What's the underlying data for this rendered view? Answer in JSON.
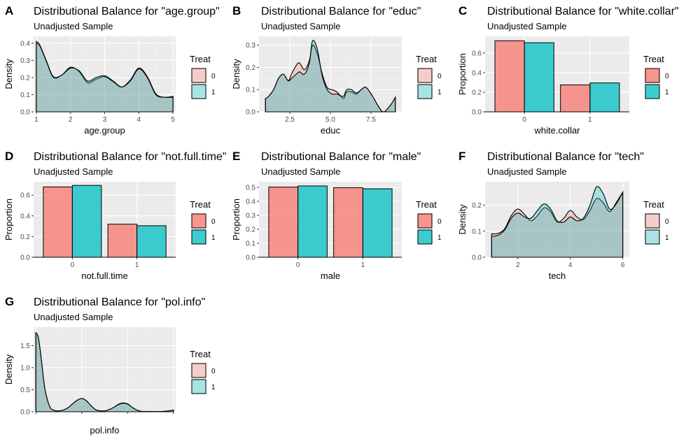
{
  "colors": {
    "treat0_bar": "#F8766D",
    "treat1_bar": "#00BFC4",
    "panel_bg": "#EBEBEB",
    "grid_major": "#FFFFFF",
    "text_dark": "#000000",
    "axis_text": "#4D4D4D"
  },
  "legend": {
    "title": "Treat",
    "labels": [
      "0",
      "1"
    ]
  },
  "chart_data": [
    {
      "tag": "A",
      "type": "area",
      "title": "Distributional Balance for \"age.group\"",
      "subtitle": "Unadjusted Sample",
      "xlabel": "age.group",
      "ylabel": "Density",
      "xlim": [
        0.92,
        5.08
      ],
      "ylim": [
        0,
        0.44
      ],
      "xticks": [
        1,
        2,
        3,
        4,
        5
      ],
      "yticks": [
        0.0,
        0.1,
        0.2,
        0.3,
        0.4
      ],
      "ytick_labels": [
        "0.0",
        "0.1",
        "0.2",
        "0.3",
        "0.4"
      ],
      "series": [
        {
          "name": "0",
          "x": [
            1.0,
            1.1,
            1.3,
            1.5,
            1.75,
            2.0,
            2.25,
            2.5,
            2.75,
            3.0,
            3.25,
            3.5,
            3.75,
            4.0,
            4.25,
            4.5,
            4.75,
            5.0
          ],
          "y": [
            0.4,
            0.385,
            0.29,
            0.2,
            0.215,
            0.26,
            0.235,
            0.17,
            0.19,
            0.205,
            0.175,
            0.145,
            0.185,
            0.255,
            0.205,
            0.105,
            0.085,
            0.09
          ]
        },
        {
          "name": "1",
          "x": [
            1.0,
            1.1,
            1.3,
            1.5,
            1.75,
            2.0,
            2.25,
            2.5,
            2.75,
            3.0,
            3.25,
            3.5,
            3.75,
            4.0,
            4.25,
            4.5,
            4.75,
            5.0
          ],
          "y": [
            0.41,
            0.39,
            0.295,
            0.205,
            0.215,
            0.255,
            0.24,
            0.18,
            0.2,
            0.21,
            0.18,
            0.145,
            0.18,
            0.25,
            0.2,
            0.1,
            0.085,
            0.085
          ]
        }
      ]
    },
    {
      "tag": "B",
      "type": "area",
      "title": "Distributional Balance for \"educ\"",
      "subtitle": "Unadjusted Sample",
      "xlabel": "educ",
      "ylabel": "Density",
      "xlim": [
        0.6,
        9.4
      ],
      "ylim": [
        0,
        0.34
      ],
      "xticks": [
        2.5,
        5.0,
        7.5
      ],
      "xtick_labels": [
        "2.5",
        "5.0",
        "7.5"
      ],
      "yticks": [
        0.0,
        0.1,
        0.2,
        0.3
      ],
      "ytick_labels": [
        "0.0",
        "0.1",
        "0.2",
        "0.3"
      ],
      "series": [
        {
          "name": "0",
          "x": [
            1.0,
            1.2,
            1.5,
            1.8,
            2.1,
            2.4,
            2.6,
            2.9,
            3.1,
            3.4,
            3.7,
            3.9,
            4.2,
            4.5,
            4.8,
            5.1,
            5.4,
            5.8,
            6.0,
            6.3,
            6.6,
            6.9,
            7.2,
            7.6,
            8.0,
            8.3,
            8.7,
            9.0
          ],
          "y": [
            0.06,
            0.07,
            0.1,
            0.15,
            0.17,
            0.14,
            0.17,
            0.21,
            0.22,
            0.19,
            0.23,
            0.3,
            0.26,
            0.17,
            0.11,
            0.1,
            0.09,
            0.06,
            0.09,
            0.09,
            0.08,
            0.1,
            0.11,
            0.07,
            0.02,
            0.0,
            0.03,
            0.065
          ]
        },
        {
          "name": "1",
          "x": [
            1.0,
            1.2,
            1.5,
            1.8,
            2.1,
            2.4,
            2.6,
            2.9,
            3.1,
            3.4,
            3.7,
            3.9,
            4.2,
            4.5,
            4.8,
            5.1,
            5.4,
            5.8,
            6.0,
            6.3,
            6.6,
            6.9,
            7.2,
            7.6,
            8.0,
            8.3,
            8.7,
            9.0
          ],
          "y": [
            0.06,
            0.07,
            0.1,
            0.15,
            0.17,
            0.14,
            0.15,
            0.17,
            0.18,
            0.17,
            0.22,
            0.32,
            0.28,
            0.16,
            0.1,
            0.08,
            0.08,
            0.07,
            0.1,
            0.1,
            0.085,
            0.1,
            0.11,
            0.07,
            0.02,
            0.0,
            0.03,
            0.065
          ]
        }
      ]
    },
    {
      "tag": "C",
      "type": "bar",
      "title": "Distributional Balance for \"white.collar\"",
      "subtitle": "Unadjusted Sample",
      "xlabel": "white.collar",
      "ylabel": "Proportion",
      "categories": [
        "0",
        "1"
      ],
      "ylim": [
        0,
        0.77
      ],
      "yticks": [
        0.0,
        0.2,
        0.4,
        0.6
      ],
      "ytick_labels": [
        "0.0",
        "0.2",
        "0.4",
        "0.6"
      ],
      "series": [
        {
          "name": "0",
          "values": [
            0.725,
            0.275
          ]
        },
        {
          "name": "1",
          "values": [
            0.705,
            0.295
          ]
        }
      ]
    },
    {
      "tag": "D",
      "type": "bar",
      "title": "Distributional Balance for \"not.full.time\"",
      "subtitle": "Unadjusted Sample",
      "xlabel": "not.full.time",
      "ylabel": "Proportion",
      "categories": [
        "0",
        "1"
      ],
      "ylim": [
        0,
        0.73
      ],
      "yticks": [
        0.0,
        0.2,
        0.4,
        0.6
      ],
      "ytick_labels": [
        "0.0",
        "0.2",
        "0.4",
        "0.6"
      ],
      "series": [
        {
          "name": "0",
          "values": [
            0.68,
            0.32
          ]
        },
        {
          "name": "1",
          "values": [
            0.695,
            0.305
          ]
        }
      ]
    },
    {
      "tag": "E",
      "type": "bar",
      "title": "Distributional Balance for \"male\"",
      "subtitle": "Unadjusted Sample",
      "xlabel": "male",
      "ylabel": "Proportion",
      "categories": [
        "0",
        "1"
      ],
      "ylim": [
        0,
        0.54
      ],
      "yticks": [
        0.0,
        0.1,
        0.2,
        0.3,
        0.4,
        0.5
      ],
      "ytick_labels": [
        "0.0",
        "0.1",
        "0.2",
        "0.3",
        "0.4",
        "0.5"
      ],
      "series": [
        {
          "name": "0",
          "values": [
            0.502,
            0.498
          ]
        },
        {
          "name": "1",
          "values": [
            0.51,
            0.49
          ]
        }
      ]
    },
    {
      "tag": "F",
      "type": "area",
      "title": "Distributional Balance for \"tech\"",
      "subtitle": "Unadjusted Sample",
      "xlabel": "tech",
      "ylabel": "Density",
      "xlim": [
        0.75,
        6.25
      ],
      "ylim": [
        0,
        0.29
      ],
      "xticks": [
        2,
        4,
        6
      ],
      "yticks": [
        0.0,
        0.1,
        0.2
      ],
      "ytick_labels": [
        "0.0",
        "0.1",
        "0.2"
      ],
      "series": [
        {
          "name": "0",
          "x": [
            1.0,
            1.25,
            1.5,
            1.75,
            2.0,
            2.25,
            2.5,
            2.75,
            3.0,
            3.25,
            3.5,
            3.75,
            4.0,
            4.25,
            4.5,
            4.75,
            5.0,
            5.25,
            5.5,
            5.75,
            6.0
          ],
          "y": [
            0.09,
            0.092,
            0.11,
            0.16,
            0.185,
            0.165,
            0.14,
            0.16,
            0.19,
            0.175,
            0.135,
            0.15,
            0.18,
            0.155,
            0.145,
            0.18,
            0.225,
            0.21,
            0.175,
            0.21,
            0.25
          ]
        },
        {
          "name": "1",
          "x": [
            1.0,
            1.25,
            1.5,
            1.75,
            2.0,
            2.25,
            2.5,
            2.75,
            3.0,
            3.25,
            3.5,
            3.75,
            4.0,
            4.25,
            4.5,
            4.75,
            5.0,
            5.25,
            5.5,
            5.75,
            6.0
          ],
          "y": [
            0.08,
            0.085,
            0.105,
            0.15,
            0.17,
            0.155,
            0.15,
            0.18,
            0.205,
            0.185,
            0.14,
            0.135,
            0.155,
            0.14,
            0.15,
            0.2,
            0.27,
            0.245,
            0.185,
            0.205,
            0.25
          ]
        }
      ]
    },
    {
      "tag": "G",
      "type": "area",
      "title": "Distributional Balance for \"pol.info\"",
      "subtitle": "Unadjusted Sample",
      "xlabel": "pol.info",
      "ylabel": "Density",
      "xlim": [
        -0.05,
        3.05
      ],
      "ylim": [
        0,
        1.92
      ],
      "xticks": [
        0,
        1,
        2,
        3
      ],
      "xtick_labels": [
        "",
        "",
        "",
        ""
      ],
      "yticks": [
        0.0,
        0.5,
        1.0,
        1.5
      ],
      "ytick_labels": [
        "0.0",
        "0.5",
        "1.0",
        "1.5"
      ],
      "series": [
        {
          "name": "0",
          "x": [
            0.0,
            0.05,
            0.1,
            0.15,
            0.2,
            0.3,
            0.4,
            0.5,
            0.6,
            0.7,
            0.8,
            0.9,
            1.0,
            1.1,
            1.2,
            1.3,
            1.4,
            1.5,
            1.6,
            1.7,
            1.8,
            1.9,
            2.0,
            2.1,
            2.2,
            2.3,
            2.5,
            2.7,
            2.9,
            3.0
          ],
          "y": [
            1.8,
            1.7,
            1.35,
            0.9,
            0.5,
            0.12,
            0.03,
            0.02,
            0.04,
            0.09,
            0.18,
            0.26,
            0.3,
            0.25,
            0.14,
            0.05,
            0.02,
            0.02,
            0.05,
            0.1,
            0.16,
            0.19,
            0.17,
            0.1,
            0.04,
            0.01,
            0.005,
            0.005,
            0.02,
            0.04
          ]
        },
        {
          "name": "1",
          "x": [
            0.0,
            0.05,
            0.1,
            0.15,
            0.2,
            0.3,
            0.4,
            0.5,
            0.6,
            0.7,
            0.8,
            0.9,
            1.0,
            1.1,
            1.2,
            1.3,
            1.4,
            1.5,
            1.6,
            1.7,
            1.8,
            1.9,
            2.0,
            2.1,
            2.2,
            2.3,
            2.5,
            2.7,
            2.9,
            3.0
          ],
          "y": [
            1.8,
            1.7,
            1.35,
            0.9,
            0.5,
            0.12,
            0.03,
            0.02,
            0.04,
            0.09,
            0.18,
            0.26,
            0.3,
            0.25,
            0.14,
            0.05,
            0.02,
            0.02,
            0.05,
            0.1,
            0.17,
            0.2,
            0.18,
            0.1,
            0.04,
            0.01,
            0.005,
            0.005,
            0.02,
            0.04
          ]
        }
      ]
    }
  ]
}
